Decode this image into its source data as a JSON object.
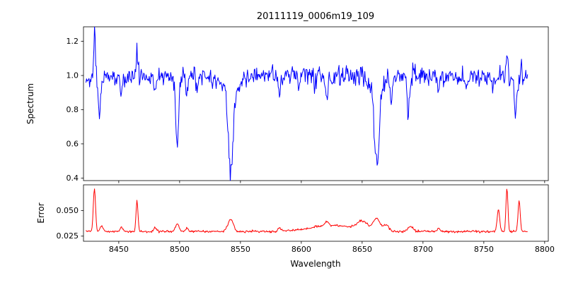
{
  "figure": {
    "background": "#ffffff"
  },
  "chart_data": [
    {
      "type": "line",
      "title": "20111119_0006m19_109",
      "ylabel": "Spectrum",
      "xlabel": "",
      "color": "#0000ff",
      "grid": false,
      "legend": "none",
      "xlim": [
        8421,
        8803
      ],
      "ylim": [
        0.385,
        1.285
      ],
      "xticks": [
        8450,
        8500,
        8550,
        8600,
        8650,
        8700,
        8750,
        8800
      ],
      "xtick_labels": [
        "8450",
        "8500",
        "8550",
        "8600",
        "8650",
        "8700",
        "8750",
        "8800"
      ],
      "yticks": [
        0.4,
        0.6,
        0.8,
        1.0,
        1.2
      ],
      "ytick_labels": [
        "0.4",
        "0.6",
        "0.8",
        "1.0",
        "1.2"
      ],
      "show_xtick_labels": false,
      "description": "Normalized stellar spectrum, continuum near 1.0, deep Ca II triplet absorption lines near 8498, 8542 and 8662 Angstrom, noisy spike regions near 8430, 8465 and 8765-8785",
      "series_generation": {
        "seed": 11,
        "n_points": 720,
        "x_start": 8423,
        "x_end": 8786,
        "continuum": 1.0,
        "continuum_curvature": 4.5e-07,
        "continuum_center": 8600,
        "noise_scale": 0.8,
        "absorption_lines": [
          [
            8434,
            0.22,
            1.0
          ],
          [
            8452,
            0.09,
            0.8
          ],
          [
            8480,
            0.08,
            0.8
          ],
          [
            8498,
            0.4,
            1.3
          ],
          [
            8506,
            0.1,
            0.9
          ],
          [
            8514,
            0.06,
            0.8
          ],
          [
            8542,
            0.47,
            1.9
          ],
          [
            8542,
            0.1,
            6.5
          ],
          [
            8582,
            0.1,
            1.0
          ],
          [
            8598,
            0.06,
            0.8
          ],
          [
            8611,
            0.07,
            0.8
          ],
          [
            8621,
            0.11,
            1.0
          ],
          [
            8662,
            0.49,
            1.8
          ],
          [
            8662,
            0.08,
            6.0
          ],
          [
            8674,
            0.12,
            0.9
          ],
          [
            8688,
            0.2,
            1.1
          ],
          [
            8713,
            0.08,
            0.8
          ],
          [
            8736,
            0.06,
            0.8
          ],
          [
            8757,
            0.06,
            0.8
          ],
          [
            8776,
            0.22,
            0.9
          ]
        ],
        "emission_spikes": [
          [
            8430,
            0.28,
            0.7
          ],
          [
            8465,
            0.18,
            0.7
          ],
          [
            8769,
            0.18,
            0.7
          ],
          [
            8781,
            0.1,
            0.6
          ]
        ]
      }
    },
    {
      "type": "line",
      "title": "",
      "ylabel": "Error",
      "xlabel": "Wavelength",
      "color": "#ff0000",
      "grid": false,
      "legend": "none",
      "xlim": [
        8421,
        8803
      ],
      "ylim": [
        0.02,
        0.075
      ],
      "xticks": [
        8450,
        8500,
        8550,
        8600,
        8650,
        8700,
        8750,
        8800
      ],
      "xtick_labels": [
        "8450",
        "8500",
        "8550",
        "8600",
        "8650",
        "8700",
        "8750",
        "8800"
      ],
      "yticks": [
        0.025,
        0.05
      ],
      "ytick_labels": [
        "0.025",
        "0.050"
      ],
      "show_xtick_labels": true,
      "description": "Error spectrum, baseline near 0.030 with narrow spikes near 8430, 8465, 8762-8780 and broad bumps near the absorption lines",
      "series_generation": {
        "seed": 23,
        "baseline": 0.0295,
        "noise": 0.0009,
        "peaks": [
          [
            8430,
            0.042,
            0.9
          ],
          [
            8436,
            0.006,
            1.2
          ],
          [
            8452,
            0.004,
            1.0
          ],
          [
            8465,
            0.03,
            0.8
          ],
          [
            8480,
            0.004,
            1.0
          ],
          [
            8498,
            0.007,
            1.5
          ],
          [
            8506,
            0.004,
            1.0
          ],
          [
            8542,
            0.012,
            2.2
          ],
          [
            8582,
            0.003,
            1.2
          ],
          [
            8621,
            0.004,
            1.5
          ],
          [
            8625,
            0.006,
            18.0
          ],
          [
            8650,
            0.008,
            4.0
          ],
          [
            8662,
            0.012,
            3.0
          ],
          [
            8670,
            0.006,
            2.0
          ],
          [
            8690,
            0.005,
            2.0
          ],
          [
            8713,
            0.003,
            1.0
          ],
          [
            8762,
            0.022,
            1.0
          ],
          [
            8769,
            0.042,
            0.8
          ],
          [
            8779,
            0.03,
            0.9
          ]
        ]
      }
    }
  ]
}
